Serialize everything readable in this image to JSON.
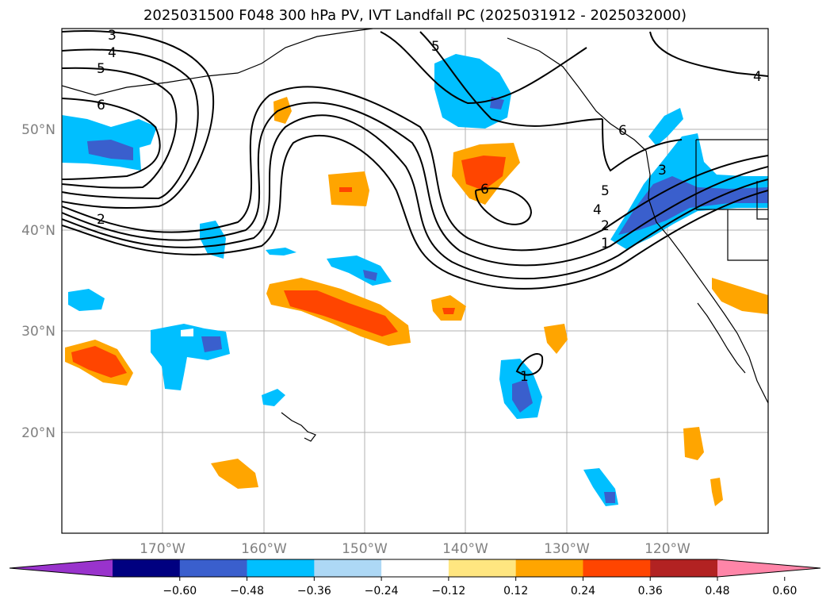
{
  "title": "2025031500 F048 300 hPa PV, IVT Landfall PC (2025031912 - 2025032000)",
  "map": {
    "lon_range": [
      -180,
      -110
    ],
    "lat_range": [
      10,
      60
    ],
    "longitude_labels": [
      "170°W",
      "160°W",
      "150°W",
      "140°W",
      "130°W",
      "120°W"
    ],
    "latitude_labels": [
      "50°N",
      "40°N",
      "30°N",
      "20°N"
    ],
    "gridlines": true,
    "contour_labels": [
      "3",
      "4",
      "5",
      "6",
      "2",
      "5",
      "6",
      "4",
      "3",
      "5",
      "4",
      "2",
      "1",
      "1",
      "6"
    ]
  },
  "colorbar": {
    "extend": "both",
    "tick_labels": [
      "−0.60",
      "−0.48",
      "−0.36",
      "−0.24",
      "−0.12",
      "0.12",
      "0.24",
      "0.36",
      "0.48",
      "0.60"
    ],
    "colors": [
      "#9933cc",
      "#000080",
      "#3a5fcd",
      "#00bfff",
      "#add8f5",
      "#ffffff",
      "#ffe680",
      "#ffa500",
      "#ff4500",
      "#b22222",
      "#ff85a8"
    ]
  }
}
